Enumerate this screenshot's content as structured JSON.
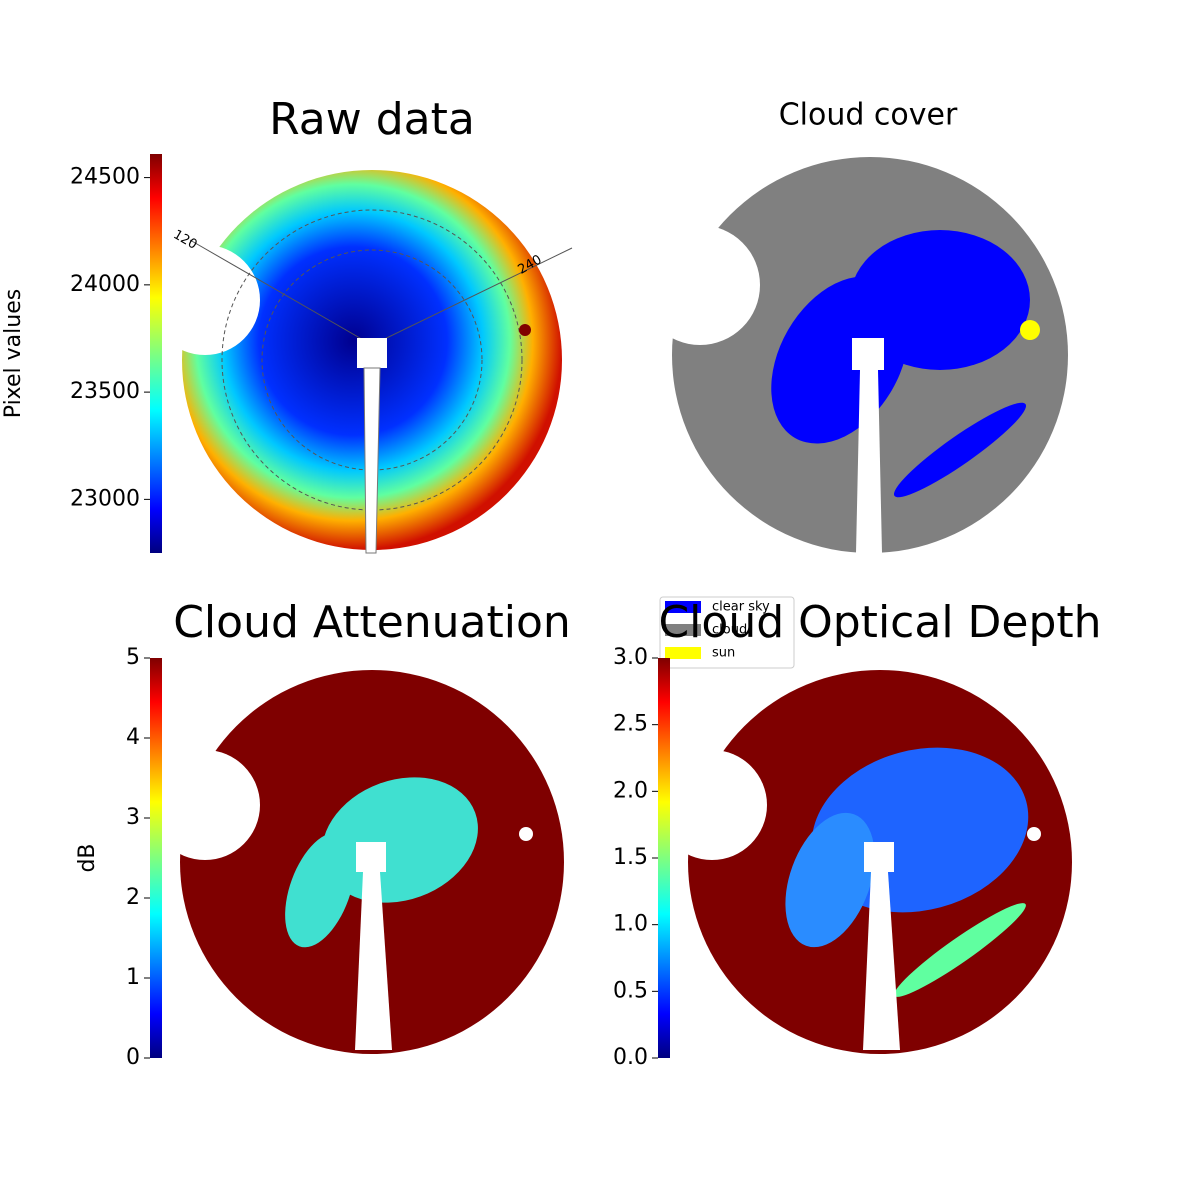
{
  "chart_data": [
    {
      "type": "heatmap",
      "title": "Raw data",
      "colormap": "jet",
      "colorbar": {
        "label": "Pixel values",
        "lim": [
          22750,
          24610
        ],
        "ticks": [
          23000,
          23500,
          24000,
          24500
        ]
      },
      "annotations": [
        "120",
        "240"
      ]
    },
    {
      "type": "classification",
      "title": "Cloud cover",
      "legend": [
        {
          "name": "clear sky",
          "color": "#0000ff"
        },
        {
          "name": "cloud",
          "color": "#808080"
        },
        {
          "name": "sun",
          "color": "#ffff00"
        }
      ]
    },
    {
      "type": "heatmap",
      "title": "Cloud Attenuation",
      "colormap": "jet",
      "colorbar": {
        "label": "dB",
        "lim": [
          0,
          5
        ],
        "ticks": [
          0,
          1,
          2,
          3,
          4,
          5
        ]
      }
    },
    {
      "type": "heatmap",
      "title": "Cloud Optical Depth",
      "colormap": "jet",
      "colorbar": {
        "lim": [
          0,
          3
        ],
        "ticks": [
          {
            "value": 0,
            "label": "0.0"
          },
          {
            "value": 0.5,
            "label": "0.5"
          },
          {
            "value": 1,
            "label": "1.0"
          },
          {
            "value": 1.5,
            "label": "1.5"
          },
          {
            "value": 2,
            "label": "2.0"
          },
          {
            "value": 2.5,
            "label": "2.5"
          },
          {
            "value": 3,
            "label": "3.0"
          }
        ]
      }
    }
  ]
}
